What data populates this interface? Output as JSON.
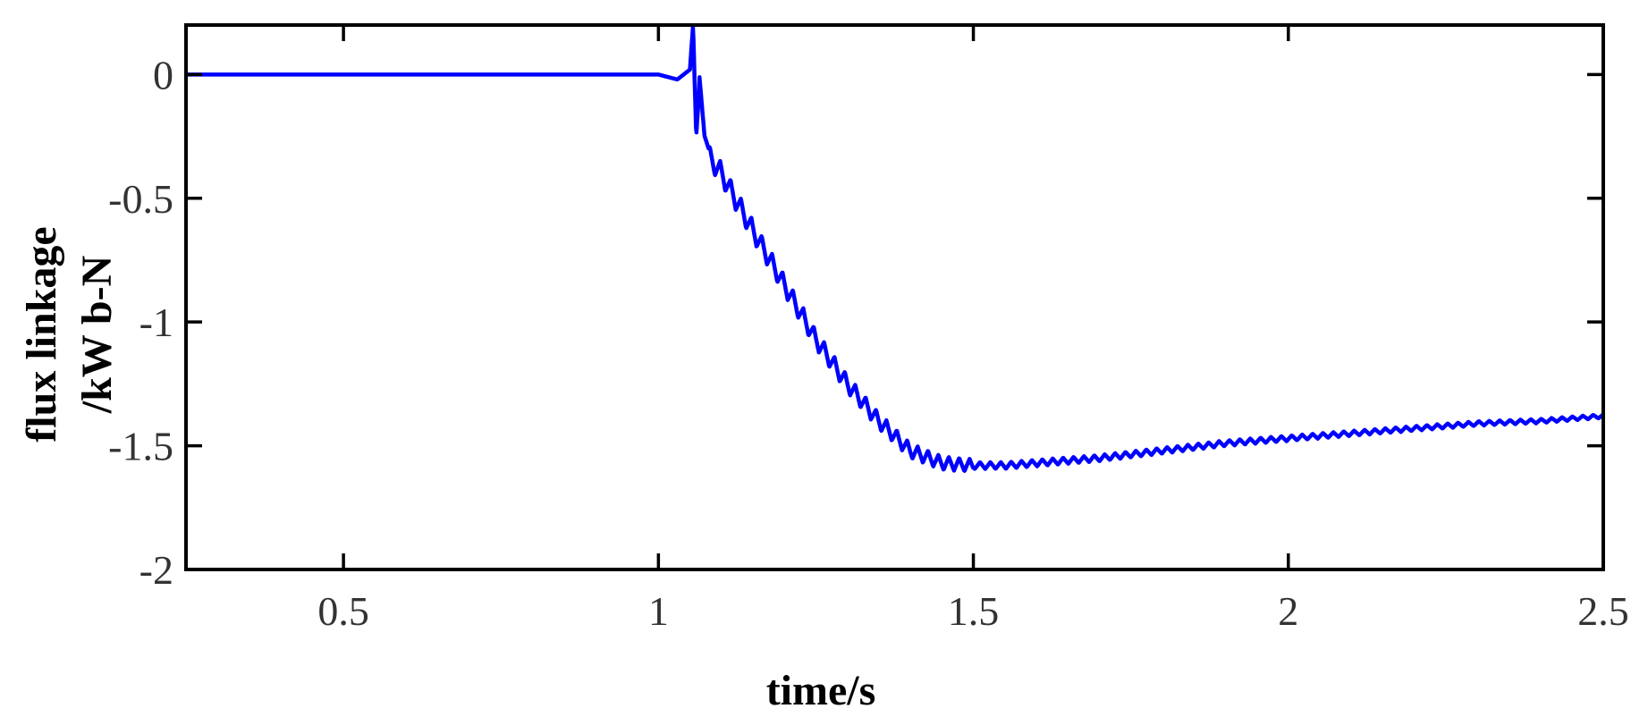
{
  "chart_data": {
    "type": "line",
    "title": "",
    "xlabel": "time/s",
    "ylabel_lines": [
      "flux linkage",
      "/kW b-N"
    ],
    "xlim": [
      0.25,
      2.5
    ],
    "ylim": [
      -2,
      0.2
    ],
    "x_ticks": [
      {
        "value": 0.5,
        "label": "0.5"
      },
      {
        "value": 1,
        "label": "1"
      },
      {
        "value": 1.5,
        "label": "1.5"
      },
      {
        "value": 2,
        "label": "2"
      },
      {
        "value": 2.5,
        "label": "2.5"
      }
    ],
    "y_ticks": [
      {
        "value": 0,
        "label": "0"
      },
      {
        "value": -0.5,
        "label": "-0.5"
      },
      {
        "value": -1,
        "label": "-1"
      },
      {
        "value": -1.5,
        "label": "-1.5"
      },
      {
        "value": -2,
        "label": "-2"
      }
    ],
    "grid": false,
    "series": [
      {
        "color": "#0000ff",
        "x": [
          0.25,
          0.5,
          0.75,
          1.0,
          1.03,
          1.04,
          1.05,
          1.055,
          1.06,
          1.065,
          1.08,
          1.1,
          1.15,
          1.2,
          1.25,
          1.3,
          1.35,
          1.4,
          1.45,
          1.5,
          1.55,
          1.6,
          1.7,
          1.8,
          1.9,
          2.0,
          2.1,
          2.2,
          2.3,
          2.4,
          2.5
        ],
        "y": [
          0.0,
          0.0,
          0.0,
          0.0,
          -0.02,
          0.0,
          0.02,
          0.2,
          -0.25,
          -0.05,
          -0.33,
          -0.4,
          -0.63,
          -0.85,
          -1.07,
          -1.25,
          -1.4,
          -1.52,
          -1.57,
          -1.58,
          -1.58,
          -1.57,
          -1.55,
          -1.52,
          -1.49,
          -1.47,
          -1.45,
          -1.43,
          -1.41,
          -1.4,
          -1.38
        ]
      }
    ],
    "colors": {
      "series": "#0000ff",
      "axis": "#000000",
      "tick_text": "#333333"
    }
  }
}
